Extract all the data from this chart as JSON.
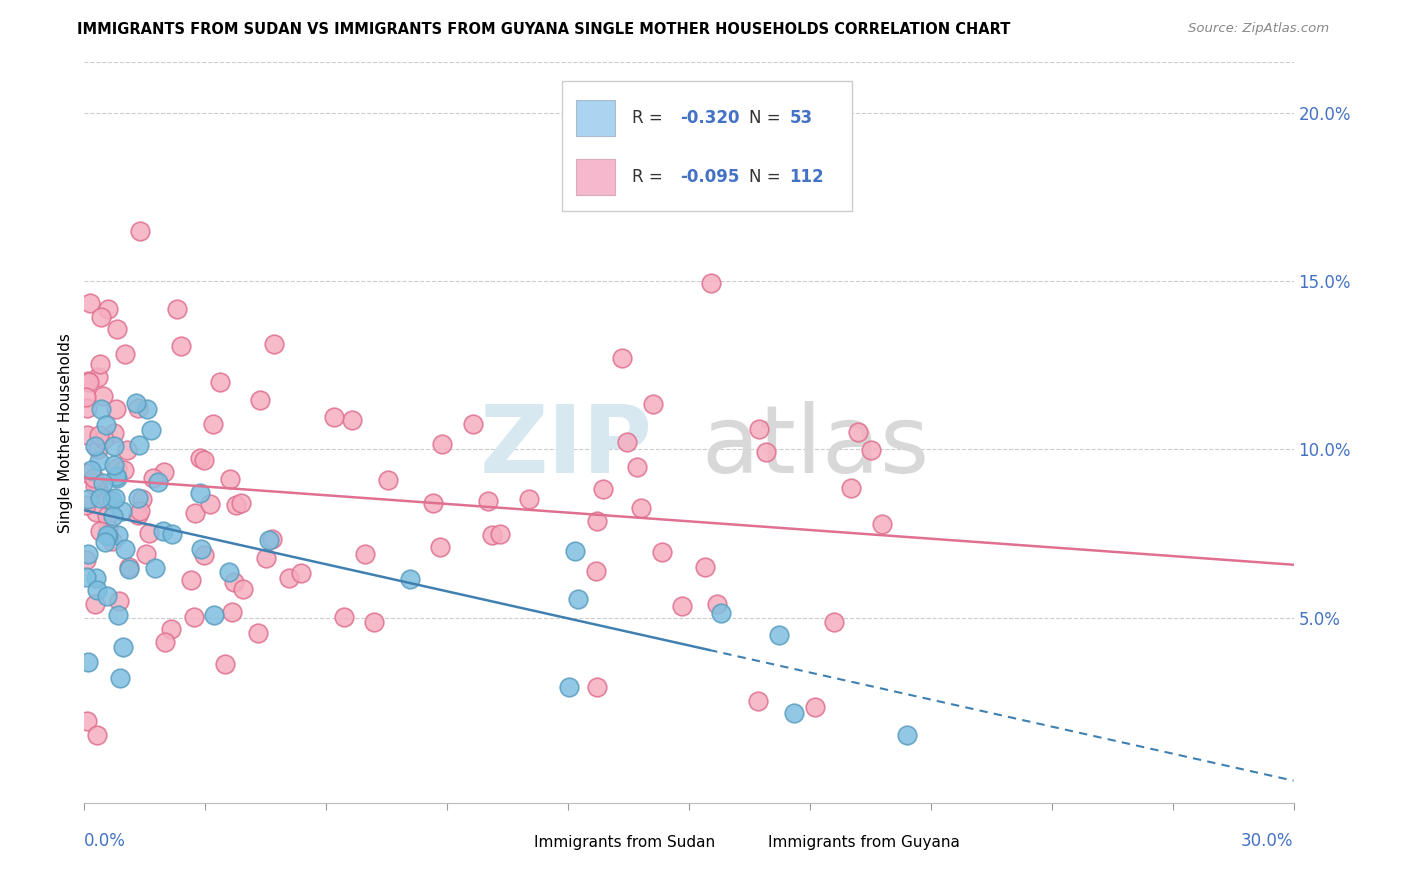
{
  "title": "IMMIGRANTS FROM SUDAN VS IMMIGRANTS FROM GUYANA SINGLE MOTHER HOUSEHOLDS CORRELATION CHART",
  "source": "Source: ZipAtlas.com",
  "ylabel": "Single Mother Households",
  "y_ticks": [
    0.05,
    0.1,
    0.15,
    0.2
  ],
  "y_tick_labels": [
    "5.0%",
    "10.0%",
    "15.0%",
    "20.0%"
  ],
  "x_lim": [
    0.0,
    0.3
  ],
  "y_lim": [
    -0.005,
    0.215
  ],
  "watermark_zip": "ZIP",
  "watermark_atlas": "atlas",
  "sudan_color": "#7fbfdf",
  "sudan_edge_color": "#5a9ec0",
  "guyana_color": "#f5aec0",
  "guyana_edge_color": "#e07090",
  "sudan_line_color": "#4080b0",
  "guyana_line_color": "#e07090",
  "legend_sudan_color": "#aad4f0",
  "legend_guyana_color": "#f5b8cc",
  "bottom_legend_sudan_color": "#aad4f0",
  "bottom_legend_guyana_color": "#f5b8cc",
  "r_sudan": -0.32,
  "n_sudan": 53,
  "r_guyana": -0.095,
  "n_guyana": 112,
  "grid_color": "#cccccc",
  "axis_label_color": "#4472c4",
  "title_color": "#000000",
  "source_color": "#888888"
}
